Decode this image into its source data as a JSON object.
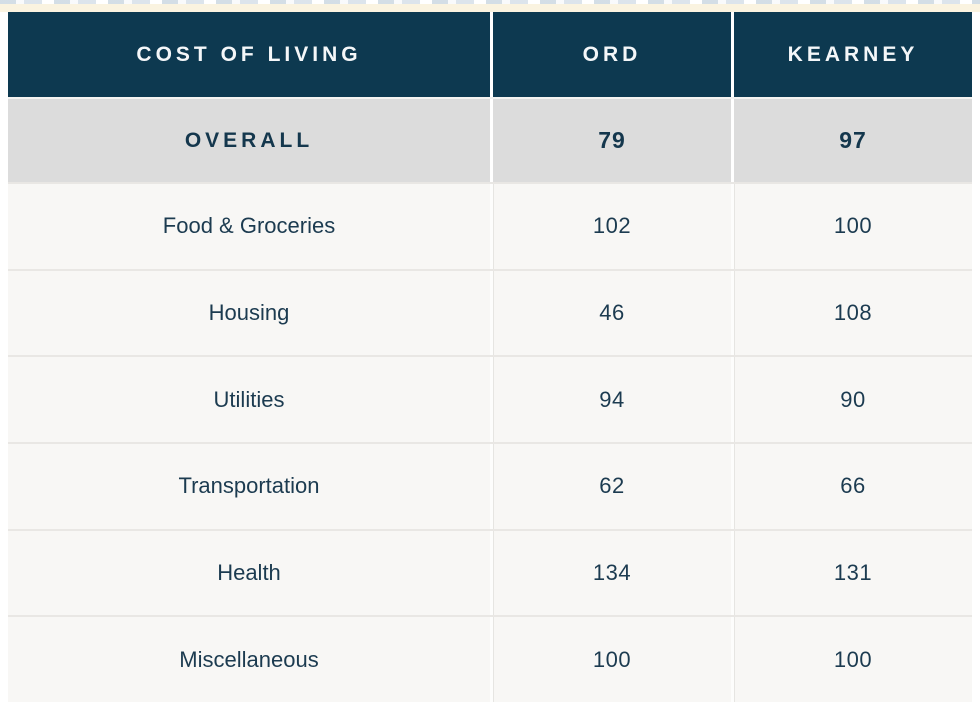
{
  "page": {
    "background": "#ffffff",
    "top_strip_color": "#faf3e0"
  },
  "colors": {
    "header_bg": "#0d3950",
    "header_text": "#f4f7f9",
    "overall_row_bg": "#dcdcdc",
    "body_row_bg": "#f8f7f5",
    "text_navy": "#16394f",
    "column_divider": "#ffffff",
    "row_border": "#e9e7e4"
  },
  "chart_data": {
    "type": "table",
    "columns": [
      "COST OF LIVING",
      "ORD",
      "KEARNEY"
    ],
    "rows": [
      {
        "category": "OVERALL",
        "ord": "79",
        "kearney": "97"
      },
      {
        "category": "Food & Groceries",
        "ord": "102",
        "kearney": "100"
      },
      {
        "category": "Housing",
        "ord": "46",
        "kearney": "108"
      },
      {
        "category": "Utilities",
        "ord": "94",
        "kearney": "90"
      },
      {
        "category": "Transportation",
        "ord": "62",
        "kearney": "66"
      },
      {
        "category": "Health",
        "ord": "134",
        "kearney": "131"
      },
      {
        "category": "Miscellaneous",
        "ord": "100",
        "kearney": "100"
      }
    ]
  }
}
